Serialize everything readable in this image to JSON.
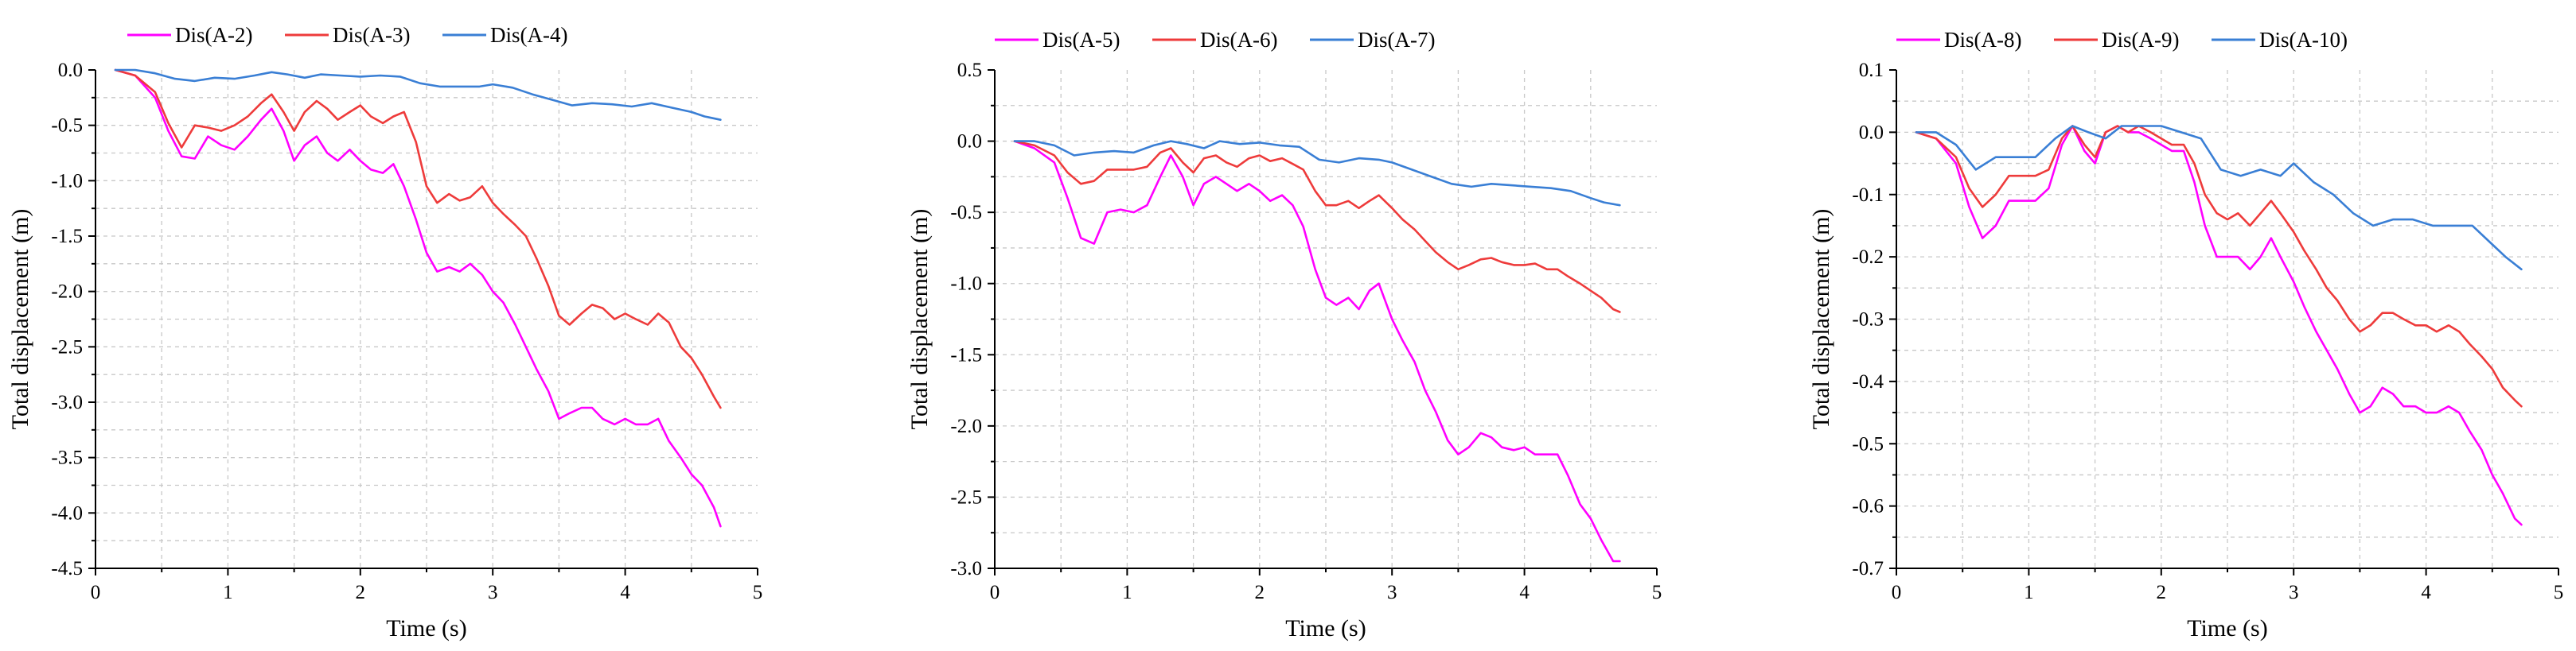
{
  "chart_data": [
    {
      "type": "line",
      "xlabel": "Time (s)",
      "ylabel": "Total displacement (m)",
      "xlim": [
        0,
        5
      ],
      "ylim": [
        -4.5,
        0.0
      ],
      "xticks": [
        0,
        1,
        2,
        3,
        4,
        5
      ],
      "xtick_labels": [
        "0",
        "1",
        "2",
        "3",
        "4",
        "5"
      ],
      "yticks": [
        0.0,
        -0.5,
        -1.0,
        -1.5,
        -2.0,
        -2.5,
        -3.0,
        -3.5,
        -4.0,
        -4.5
      ],
      "ytick_labels": [
        "0.0",
        "-0.5",
        "-1.0",
        "-1.5",
        "-2.0",
        "-2.5",
        "-3.0",
        "-3.5",
        "-4.0",
        "-4.5"
      ],
      "grid": true,
      "legend_position": "top",
      "series": [
        {
          "name": "Dis(A-2)",
          "color": "#ff00ff",
          "x": [
            0.15,
            0.3,
            0.45,
            0.55,
            0.65,
            0.75,
            0.85,
            0.95,
            1.05,
            1.15,
            1.25,
            1.33,
            1.42,
            1.5,
            1.58,
            1.67,
            1.75,
            1.83,
            1.92,
            2.0,
            2.08,
            2.17,
            2.25,
            2.33,
            2.42,
            2.5,
            2.58,
            2.67,
            2.75,
            2.83,
            2.92,
            3.0,
            3.08,
            3.17,
            3.25,
            3.33,
            3.42,
            3.5,
            3.58,
            3.67,
            3.75,
            3.83,
            3.92,
            4.0,
            4.08,
            4.17,
            4.25,
            4.33,
            4.42,
            4.5,
            4.58,
            4.67,
            4.72
          ],
          "y": [
            0.0,
            -0.05,
            -0.25,
            -0.55,
            -0.78,
            -0.8,
            -0.6,
            -0.68,
            -0.72,
            -0.6,
            -0.45,
            -0.35,
            -0.55,
            -0.82,
            -0.68,
            -0.6,
            -0.75,
            -0.82,
            -0.72,
            -0.82,
            -0.9,
            -0.93,
            -0.85,
            -1.05,
            -1.35,
            -1.65,
            -1.82,
            -1.78,
            -1.82,
            -1.75,
            -1.85,
            -2.0,
            -2.1,
            -2.3,
            -2.5,
            -2.7,
            -2.9,
            -3.15,
            -3.1,
            -3.05,
            -3.05,
            -3.15,
            -3.2,
            -3.15,
            -3.2,
            -3.2,
            -3.15,
            -3.35,
            -3.5,
            -3.65,
            -3.75,
            -3.95,
            -4.12
          ]
        },
        {
          "name": "Dis(A-3)",
          "color": "#ee3b3b",
          "x": [
            0.15,
            0.3,
            0.45,
            0.55,
            0.65,
            0.75,
            0.85,
            0.95,
            1.05,
            1.15,
            1.25,
            1.33,
            1.42,
            1.5,
            1.58,
            1.67,
            1.75,
            1.83,
            1.92,
            2.0,
            2.08,
            2.17,
            2.25,
            2.33,
            2.42,
            2.5,
            2.58,
            2.67,
            2.75,
            2.83,
            2.92,
            3.0,
            3.08,
            3.17,
            3.25,
            3.33,
            3.42,
            3.5,
            3.58,
            3.67,
            3.75,
            3.83,
            3.92,
            4.0,
            4.08,
            4.17,
            4.25,
            4.33,
            4.42,
            4.5,
            4.58,
            4.67,
            4.72
          ],
          "y": [
            0.0,
            -0.05,
            -0.2,
            -0.48,
            -0.7,
            -0.5,
            -0.52,
            -0.55,
            -0.5,
            -0.42,
            -0.3,
            -0.22,
            -0.38,
            -0.55,
            -0.38,
            -0.28,
            -0.35,
            -0.45,
            -0.38,
            -0.32,
            -0.42,
            -0.48,
            -0.42,
            -0.38,
            -0.65,
            -1.05,
            -1.2,
            -1.12,
            -1.18,
            -1.15,
            -1.05,
            -1.2,
            -1.3,
            -1.4,
            -1.5,
            -1.7,
            -1.95,
            -2.22,
            -2.3,
            -2.2,
            -2.12,
            -2.15,
            -2.25,
            -2.2,
            -2.25,
            -2.3,
            -2.2,
            -2.28,
            -2.5,
            -2.6,
            -2.75,
            -2.95,
            -3.05
          ]
        },
        {
          "name": "Dis(A-4)",
          "color": "#3a7fd5",
          "x": [
            0.15,
            0.3,
            0.45,
            0.6,
            0.75,
            0.9,
            1.05,
            1.2,
            1.33,
            1.45,
            1.58,
            1.7,
            1.85,
            2.0,
            2.15,
            2.3,
            2.45,
            2.6,
            2.75,
            2.9,
            3.0,
            3.15,
            3.3,
            3.45,
            3.6,
            3.75,
            3.9,
            4.05,
            4.2,
            4.35,
            4.5,
            4.6,
            4.72
          ],
          "y": [
            0.0,
            0.0,
            -0.03,
            -0.08,
            -0.1,
            -0.07,
            -0.08,
            -0.05,
            -0.02,
            -0.04,
            -0.07,
            -0.04,
            -0.05,
            -0.06,
            -0.05,
            -0.06,
            -0.12,
            -0.15,
            -0.15,
            -0.15,
            -0.13,
            -0.16,
            -0.22,
            -0.27,
            -0.32,
            -0.3,
            -0.31,
            -0.33,
            -0.3,
            -0.34,
            -0.38,
            -0.42,
            -0.45
          ]
        }
      ]
    },
    {
      "type": "line",
      "xlabel": "Time (s)",
      "ylabel": "Total displacement (m)",
      "xlim": [
        0,
        5
      ],
      "ylim": [
        -3.0,
        0.5
      ],
      "xticks": [
        0,
        1,
        2,
        3,
        4,
        5
      ],
      "xtick_labels": [
        "0",
        "1",
        "2",
        "3",
        "4",
        "5"
      ],
      "yticks": [
        0.5,
        0.0,
        -0.5,
        -1.0,
        -1.5,
        -2.0,
        -2.5,
        -3.0
      ],
      "ytick_labels": [
        "0.5",
        "0.0",
        "-0.5",
        "-1.0",
        "-1.5",
        "-2.0",
        "-2.5",
        "-3.0"
      ],
      "grid": true,
      "legend_position": "top",
      "series": [
        {
          "name": "Dis(A-5)",
          "color": "#ff00ff",
          "x": [
            0.15,
            0.3,
            0.45,
            0.55,
            0.65,
            0.75,
            0.85,
            0.95,
            1.05,
            1.15,
            1.25,
            1.33,
            1.42,
            1.5,
            1.58,
            1.67,
            1.75,
            1.83,
            1.92,
            2.0,
            2.08,
            2.17,
            2.25,
            2.33,
            2.42,
            2.5,
            2.58,
            2.67,
            2.75,
            2.83,
            2.9,
            3.0,
            3.08,
            3.17,
            3.25,
            3.33,
            3.42,
            3.5,
            3.58,
            3.67,
            3.75,
            3.83,
            3.92,
            4.0,
            4.08,
            4.17,
            4.25,
            4.33,
            4.42,
            4.5,
            4.58,
            4.67,
            4.72
          ],
          "y": [
            0.0,
            -0.05,
            -0.15,
            -0.4,
            -0.68,
            -0.72,
            -0.5,
            -0.48,
            -0.5,
            -0.45,
            -0.25,
            -0.1,
            -0.25,
            -0.45,
            -0.3,
            -0.25,
            -0.3,
            -0.35,
            -0.3,
            -0.35,
            -0.42,
            -0.38,
            -0.45,
            -0.6,
            -0.9,
            -1.1,
            -1.15,
            -1.1,
            -1.18,
            -1.05,
            -1.0,
            -1.25,
            -1.4,
            -1.55,
            -1.75,
            -1.9,
            -2.1,
            -2.2,
            -2.15,
            -2.05,
            -2.08,
            -2.15,
            -2.17,
            -2.15,
            -2.2,
            -2.2,
            -2.2,
            -2.35,
            -2.55,
            -2.65,
            -2.8,
            -2.95,
            -2.95
          ]
        },
        {
          "name": "Dis(A-6)",
          "color": "#ee3b3b",
          "x": [
            0.15,
            0.3,
            0.45,
            0.55,
            0.65,
            0.75,
            0.85,
            0.95,
            1.05,
            1.15,
            1.25,
            1.33,
            1.42,
            1.5,
            1.58,
            1.67,
            1.75,
            1.83,
            1.92,
            2.0,
            2.08,
            2.17,
            2.25,
            2.33,
            2.42,
            2.5,
            2.58,
            2.67,
            2.75,
            2.83,
            2.9,
            3.0,
            3.08,
            3.17,
            3.25,
            3.33,
            3.42,
            3.5,
            3.58,
            3.67,
            3.75,
            3.83,
            3.92,
            4.0,
            4.08,
            4.17,
            4.25,
            4.33,
            4.42,
            4.5,
            4.58,
            4.67,
            4.72
          ],
          "y": [
            0.0,
            -0.03,
            -0.1,
            -0.22,
            -0.3,
            -0.28,
            -0.2,
            -0.2,
            -0.2,
            -0.18,
            -0.08,
            -0.05,
            -0.15,
            -0.22,
            -0.12,
            -0.1,
            -0.15,
            -0.18,
            -0.12,
            -0.1,
            -0.14,
            -0.12,
            -0.16,
            -0.2,
            -0.35,
            -0.45,
            -0.45,
            -0.42,
            -0.47,
            -0.42,
            -0.38,
            -0.47,
            -0.55,
            -0.62,
            -0.7,
            -0.78,
            -0.85,
            -0.9,
            -0.87,
            -0.83,
            -0.82,
            -0.85,
            -0.87,
            -0.87,
            -0.86,
            -0.9,
            -0.9,
            -0.95,
            -1.0,
            -1.05,
            -1.1,
            -1.18,
            -1.2
          ]
        },
        {
          "name": "Dis(A-7)",
          "color": "#3a7fd5",
          "x": [
            0.15,
            0.3,
            0.45,
            0.6,
            0.75,
            0.9,
            1.05,
            1.2,
            1.33,
            1.45,
            1.58,
            1.7,
            1.85,
            2.0,
            2.15,
            2.3,
            2.45,
            2.6,
            2.75,
            2.9,
            3.0,
            3.15,
            3.3,
            3.45,
            3.6,
            3.75,
            3.9,
            4.05,
            4.2,
            4.35,
            4.5,
            4.6,
            4.72
          ],
          "y": [
            0.0,
            0.0,
            -0.03,
            -0.1,
            -0.08,
            -0.07,
            -0.08,
            -0.03,
            0.0,
            -0.02,
            -0.05,
            0.0,
            -0.02,
            -0.01,
            -0.03,
            -0.04,
            -0.13,
            -0.15,
            -0.12,
            -0.13,
            -0.15,
            -0.2,
            -0.25,
            -0.3,
            -0.32,
            -0.3,
            -0.31,
            -0.32,
            -0.33,
            -0.35,
            -0.4,
            -0.43,
            -0.45
          ]
        }
      ]
    },
    {
      "type": "line",
      "xlabel": "Time (s)",
      "ylabel": "Total displacement (m)",
      "xlim": [
        0,
        5
      ],
      "ylim": [
        -0.7,
        0.1
      ],
      "xticks": [
        0,
        1,
        2,
        3,
        4,
        5
      ],
      "xtick_labels": [
        "0",
        "1",
        "2",
        "3",
        "4",
        "5"
      ],
      "yticks": [
        0.1,
        0.0,
        -0.1,
        -0.2,
        -0.3,
        -0.4,
        -0.5,
        -0.6,
        -0.7
      ],
      "ytick_labels": [
        "0.1",
        "0.0",
        "-0.1",
        "-0.2",
        "-0.3",
        "-0.4",
        "-0.5",
        "-0.6",
        "-0.7"
      ],
      "grid": true,
      "legend_position": "top",
      "series": [
        {
          "name": "Dis(A-8)",
          "color": "#ff00ff",
          "x": [
            0.15,
            0.3,
            0.45,
            0.55,
            0.65,
            0.75,
            0.85,
            0.95,
            1.05,
            1.15,
            1.25,
            1.33,
            1.42,
            1.5,
            1.58,
            1.67,
            1.75,
            1.83,
            1.92,
            2.0,
            2.08,
            2.17,
            2.25,
            2.33,
            2.42,
            2.5,
            2.58,
            2.67,
            2.75,
            2.83,
            2.9,
            3.0,
            3.08,
            3.17,
            3.25,
            3.33,
            3.42,
            3.5,
            3.58,
            3.67,
            3.75,
            3.83,
            3.92,
            4.0,
            4.08,
            4.17,
            4.25,
            4.33,
            4.42,
            4.5,
            4.58,
            4.67,
            4.72
          ],
          "y": [
            0.0,
            -0.01,
            -0.05,
            -0.12,
            -0.17,
            -0.15,
            -0.11,
            -0.11,
            -0.11,
            -0.09,
            -0.02,
            0.01,
            -0.03,
            -0.05,
            0.0,
            0.01,
            0.0,
            0.0,
            -0.01,
            -0.02,
            -0.03,
            -0.03,
            -0.08,
            -0.15,
            -0.2,
            -0.2,
            -0.2,
            -0.22,
            -0.2,
            -0.17,
            -0.2,
            -0.24,
            -0.28,
            -0.32,
            -0.35,
            -0.38,
            -0.42,
            -0.45,
            -0.44,
            -0.41,
            -0.42,
            -0.44,
            -0.44,
            -0.45,
            -0.45,
            -0.44,
            -0.45,
            -0.48,
            -0.51,
            -0.55,
            -0.58,
            -0.62,
            -0.63
          ]
        },
        {
          "name": "Dis(A-9)",
          "color": "#ee3b3b",
          "x": [
            0.15,
            0.3,
            0.45,
            0.55,
            0.65,
            0.75,
            0.85,
            0.95,
            1.05,
            1.15,
            1.25,
            1.33,
            1.42,
            1.5,
            1.58,
            1.67,
            1.75,
            1.83,
            1.92,
            2.0,
            2.08,
            2.17,
            2.25,
            2.33,
            2.42,
            2.5,
            2.58,
            2.67,
            2.75,
            2.83,
            2.9,
            3.0,
            3.08,
            3.17,
            3.25,
            3.33,
            3.42,
            3.5,
            3.58,
            3.67,
            3.75,
            3.83,
            3.92,
            4.0,
            4.08,
            4.17,
            4.25,
            4.33,
            4.42,
            4.5,
            4.58,
            4.67,
            4.72
          ],
          "y": [
            0.0,
            -0.01,
            -0.04,
            -0.09,
            -0.12,
            -0.1,
            -0.07,
            -0.07,
            -0.07,
            -0.06,
            -0.01,
            0.01,
            -0.02,
            -0.04,
            0.0,
            0.01,
            0.0,
            0.01,
            0.0,
            -0.01,
            -0.02,
            -0.02,
            -0.05,
            -0.1,
            -0.13,
            -0.14,
            -0.13,
            -0.15,
            -0.13,
            -0.11,
            -0.13,
            -0.16,
            -0.19,
            -0.22,
            -0.25,
            -0.27,
            -0.3,
            -0.32,
            -0.31,
            -0.29,
            -0.29,
            -0.3,
            -0.31,
            -0.31,
            -0.32,
            -0.31,
            -0.32,
            -0.34,
            -0.36,
            -0.38,
            -0.41,
            -0.43,
            -0.44
          ]
        },
        {
          "name": "Dis(A-10)",
          "color": "#3a7fd5",
          "x": [
            0.15,
            0.3,
            0.45,
            0.6,
            0.75,
            0.9,
            1.05,
            1.2,
            1.33,
            1.45,
            1.58,
            1.7,
            1.85,
            2.0,
            2.15,
            2.3,
            2.45,
            2.6,
            2.75,
            2.9,
            3.0,
            3.15,
            3.3,
            3.45,
            3.6,
            3.75,
            3.9,
            4.05,
            4.2,
            4.35,
            4.5,
            4.6,
            4.72
          ],
          "y": [
            0.0,
            0.0,
            -0.02,
            -0.06,
            -0.04,
            -0.04,
            -0.04,
            -0.01,
            0.01,
            0.0,
            -0.01,
            0.01,
            0.01,
            0.01,
            0.0,
            -0.01,
            -0.06,
            -0.07,
            -0.06,
            -0.07,
            -0.05,
            -0.08,
            -0.1,
            -0.13,
            -0.15,
            -0.14,
            -0.14,
            -0.15,
            -0.15,
            -0.15,
            -0.18,
            -0.2,
            -0.22
          ]
        }
      ]
    }
  ]
}
